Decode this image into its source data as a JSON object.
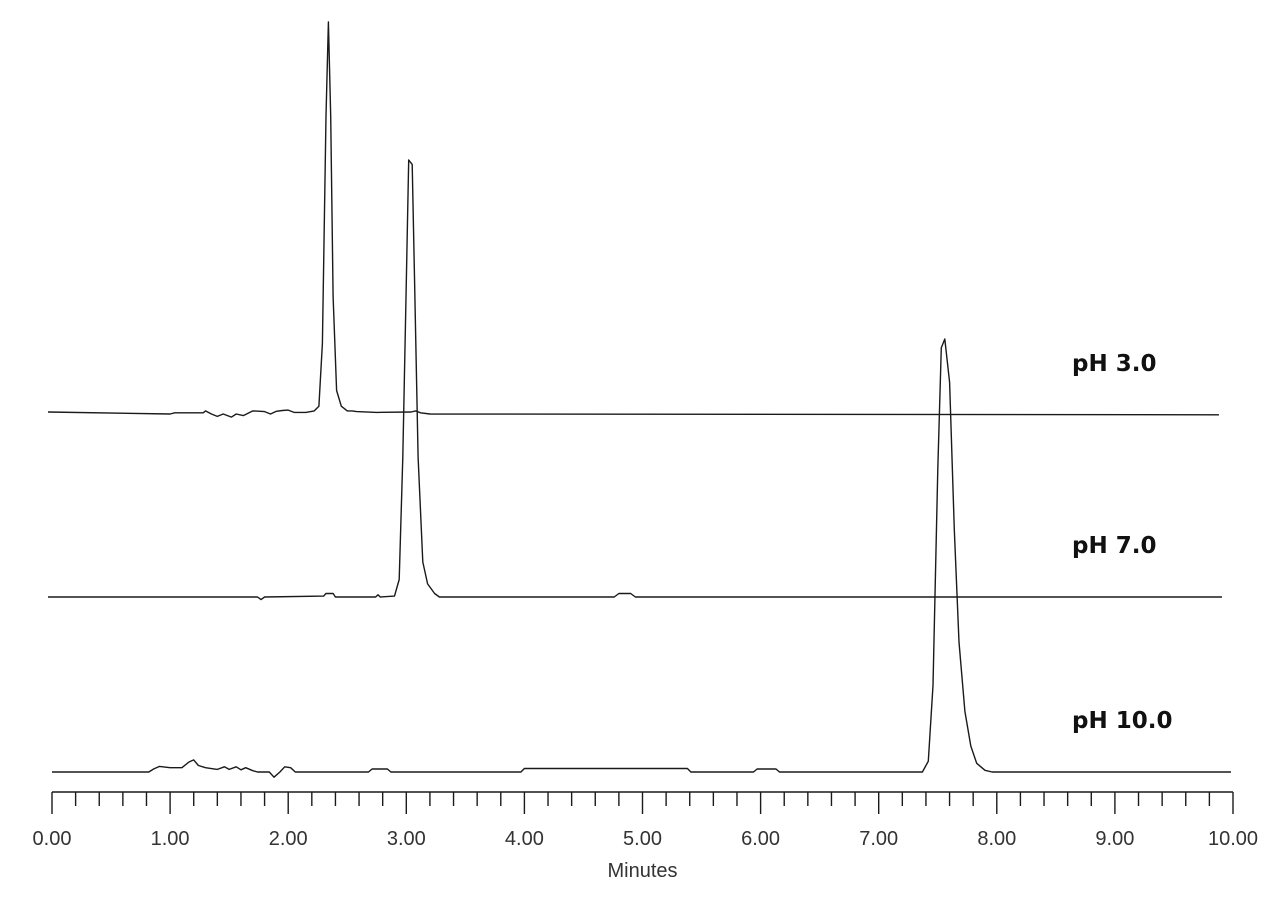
{
  "chart_data": {
    "type": "line",
    "xlabel": "Minutes",
    "ylabel": "",
    "xlim": [
      0,
      10
    ],
    "x_ticks": [
      "0.00",
      "1.00",
      "2.00",
      "3.00",
      "4.00",
      "5.00",
      "6.00",
      "7.00",
      "8.00",
      "9.00",
      "10.00"
    ],
    "minor_ticks_per_major": 5,
    "y_units": "relative detector response (0 = baseline, 1 = tallest peak)",
    "grid": false,
    "legend": "labels placed at right above each trace",
    "series": [
      {
        "name": "pH 3.0",
        "points": [
          [
            0.0,
            0.005
          ],
          [
            1.0,
            0.0
          ],
          [
            1.04,
            0.003
          ],
          [
            1.28,
            0.003
          ],
          [
            1.3,
            0.008
          ],
          [
            1.35,
            0.0
          ],
          [
            1.4,
            -0.006
          ],
          [
            1.45,
            0.0
          ],
          [
            1.52,
            -0.008
          ],
          [
            1.56,
            0.0
          ],
          [
            1.62,
            -0.004
          ],
          [
            1.7,
            0.008
          ],
          [
            1.8,
            0.006
          ],
          [
            1.85,
            0.0
          ],
          [
            1.9,
            0.007
          ],
          [
            1.95,
            0.009
          ],
          [
            2.0,
            0.01
          ],
          [
            2.05,
            0.004
          ],
          [
            2.15,
            0.004
          ],
          [
            2.22,
            0.008
          ],
          [
            2.26,
            0.02
          ],
          [
            2.29,
            0.18
          ],
          [
            2.32,
            0.76
          ],
          [
            2.34,
            1.0
          ],
          [
            2.36,
            0.76
          ],
          [
            2.38,
            0.3
          ],
          [
            2.41,
            0.06
          ],
          [
            2.45,
            0.02
          ],
          [
            2.5,
            0.008
          ],
          [
            2.54,
            0.008
          ],
          [
            2.58,
            0.006
          ],
          [
            2.75,
            0.004
          ],
          [
            3.04,
            0.005
          ],
          [
            3.08,
            0.008
          ],
          [
            3.12,
            0.003
          ],
          [
            3.2,
            0.0
          ],
          [
            10.0,
            -0.002
          ]
        ]
      },
      {
        "name": "pH 7.0",
        "points": [
          [
            0.0,
            0.0
          ],
          [
            1.74,
            0.0
          ],
          [
            1.77,
            -0.006
          ],
          [
            1.8,
            0.0
          ],
          [
            2.3,
            0.002
          ],
          [
            2.32,
            0.008
          ],
          [
            2.38,
            0.008
          ],
          [
            2.4,
            0.0
          ],
          [
            2.74,
            0.0
          ],
          [
            2.76,
            0.005
          ],
          [
            2.78,
            0.0
          ],
          [
            2.9,
            0.002
          ],
          [
            2.94,
            0.04
          ],
          [
            2.97,
            0.32
          ],
          [
            3.0,
            0.72
          ],
          [
            3.02,
            1.0
          ],
          [
            3.05,
            0.99
          ],
          [
            3.07,
            0.72
          ],
          [
            3.1,
            0.32
          ],
          [
            3.14,
            0.08
          ],
          [
            3.18,
            0.03
          ],
          [
            3.24,
            0.008
          ],
          [
            3.28,
            0.0
          ],
          [
            4.76,
            0.0
          ],
          [
            4.8,
            0.008
          ],
          [
            4.9,
            0.008
          ],
          [
            4.94,
            0.0
          ],
          [
            10.0,
            0.0
          ]
        ]
      },
      {
        "name": "pH 10.0",
        "points": [
          [
            0.0,
            0.0
          ],
          [
            0.82,
            0.0
          ],
          [
            0.86,
            0.007
          ],
          [
            0.91,
            0.013
          ],
          [
            1.0,
            0.01
          ],
          [
            1.1,
            0.01
          ],
          [
            1.16,
            0.023
          ],
          [
            1.2,
            0.028
          ],
          [
            1.24,
            0.015
          ],
          [
            1.3,
            0.01
          ],
          [
            1.4,
            0.006
          ],
          [
            1.46,
            0.012
          ],
          [
            1.5,
            0.006
          ],
          [
            1.56,
            0.012
          ],
          [
            1.6,
            0.005
          ],
          [
            1.64,
            0.01
          ],
          [
            1.7,
            0.003
          ],
          [
            1.74,
            0.0
          ],
          [
            1.84,
            0.0
          ],
          [
            1.88,
            -0.012
          ],
          [
            1.93,
            0.0
          ],
          [
            1.97,
            0.012
          ],
          [
            2.02,
            0.01
          ],
          [
            2.06,
            0.0
          ],
          [
            2.68,
            0.0
          ],
          [
            2.71,
            0.007
          ],
          [
            2.84,
            0.007
          ],
          [
            2.87,
            0.0
          ],
          [
            3.97,
            0.0
          ],
          [
            4.0,
            0.008
          ],
          [
            5.38,
            0.008
          ],
          [
            5.41,
            0.0
          ],
          [
            5.94,
            0.0
          ],
          [
            5.97,
            0.007
          ],
          [
            6.13,
            0.007
          ],
          [
            6.16,
            0.0
          ],
          [
            7.37,
            0.0
          ],
          [
            7.42,
            0.025
          ],
          [
            7.46,
            0.2
          ],
          [
            7.5,
            0.7
          ],
          [
            7.53,
            0.98
          ],
          [
            7.56,
            1.0
          ],
          [
            7.6,
            0.9
          ],
          [
            7.64,
            0.56
          ],
          [
            7.68,
            0.3
          ],
          [
            7.73,
            0.14
          ],
          [
            7.78,
            0.06
          ],
          [
            7.83,
            0.02
          ],
          [
            7.9,
            0.004
          ],
          [
            7.96,
            0.0
          ],
          [
            10.0,
            0.0
          ]
        ]
      }
    ]
  }
}
